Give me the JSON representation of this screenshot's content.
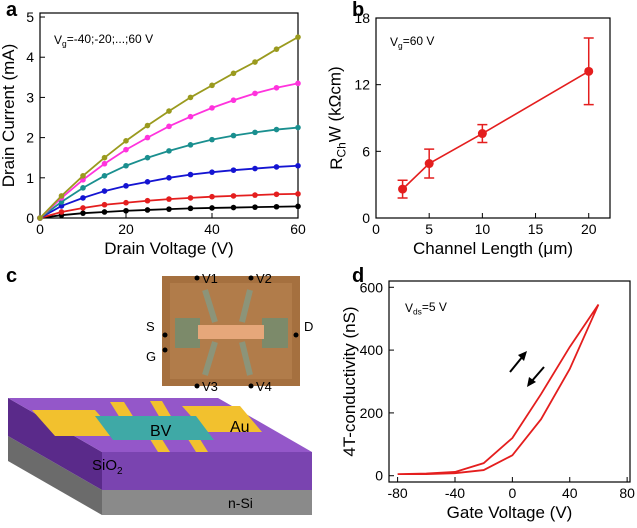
{
  "chart_data": [
    {
      "type": "line",
      "panel": "a",
      "xlabel": "Drain Voltage (V)",
      "ylabel": "Drain Current (mA)",
      "annotation": [
        "V",
        {
          "sub": "g"
        },
        "=-40;-20;...;60 V"
      ],
      "x": [
        0,
        5,
        10,
        15,
        20,
        25,
        30,
        35,
        40,
        45,
        50,
        55,
        60
      ],
      "series": [
        {
          "color": "#000000",
          "values": [
            0,
            0.07,
            0.12,
            0.15,
            0.18,
            0.2,
            0.22,
            0.24,
            0.25,
            0.26,
            0.27,
            0.28,
            0.29
          ]
        },
        {
          "color": "#e41e1e",
          "values": [
            0,
            0.15,
            0.25,
            0.33,
            0.38,
            0.43,
            0.47,
            0.5,
            0.53,
            0.55,
            0.57,
            0.59,
            0.6
          ]
        },
        {
          "color": "#1414d2",
          "values": [
            0,
            0.3,
            0.5,
            0.67,
            0.8,
            0.9,
            1.0,
            1.08,
            1.14,
            1.19,
            1.23,
            1.27,
            1.3
          ]
        },
        {
          "color": "#1a8f8f",
          "values": [
            0,
            0.4,
            0.75,
            1.05,
            1.3,
            1.5,
            1.67,
            1.82,
            1.95,
            2.05,
            2.13,
            2.2,
            2.25
          ]
        },
        {
          "color": "#ff33dd",
          "values": [
            0,
            0.5,
            0.95,
            1.35,
            1.7,
            2.0,
            2.28,
            2.52,
            2.74,
            2.93,
            3.1,
            3.24,
            3.35
          ]
        },
        {
          "color": "#9a9a1e",
          "values": [
            0,
            0.55,
            1.05,
            1.5,
            1.92,
            2.3,
            2.66,
            3.0,
            3.3,
            3.6,
            3.88,
            4.2,
            4.5
          ]
        }
      ],
      "markers": true,
      "xlim": [
        0,
        60
      ],
      "xticks": [
        0,
        20,
        40,
        60
      ],
      "ylim": [
        0,
        5.1
      ],
      "yticks": [
        0,
        1,
        2,
        3,
        4,
        5
      ]
    },
    {
      "type": "scatter",
      "panel": "b",
      "xlabel": "Channel Length (μm)",
      "ylabel": [
        "R",
        {
          "sub": "Ch"
        },
        "W (kΩcm)"
      ],
      "annotation": [
        "V",
        {
          "sub": "g"
        },
        "=60 V"
      ],
      "x": [
        2.5,
        5,
        10,
        20
      ],
      "values": [
        2.6,
        4.9,
        7.6,
        13.2
      ],
      "error": [
        0.8,
        1.3,
        0.8,
        3.0
      ],
      "color": "#e41e1e",
      "line": true,
      "xlim": [
        0,
        22
      ],
      "xticks": [
        0,
        5,
        10,
        15,
        20
      ],
      "ylim": [
        0,
        18
      ],
      "yticks": [
        0,
        6,
        12,
        18
      ]
    },
    {
      "type": "line",
      "panel": "d",
      "xlabel": "Gate Voltage (V)",
      "ylabel": "4T-conductivity (nS)",
      "annotation": [
        "V",
        {
          "sub": "ds"
        },
        "=5 V"
      ],
      "x": [
        -80,
        -60,
        -40,
        -20,
        0,
        20,
        40,
        60,
        40,
        20,
        0,
        -20,
        -40,
        -60,
        -80
      ],
      "series": [
        {
          "color": "#e41e1e",
          "values": [
            5,
            7,
            12,
            40,
            120,
            260,
            410,
            545,
            340,
            180,
            65,
            18,
            8,
            5,
            5
          ]
        }
      ],
      "markers": false,
      "xlim": [
        -86,
        82
      ],
      "xticks": [
        -80,
        -40,
        0,
        40,
        80
      ],
      "ylim": [
        -20,
        620
      ],
      "yticks": [
        0,
        200,
        400,
        600
      ]
    }
  ],
  "diagram": {
    "panel": "c",
    "V1": "V1",
    "V2": "V2",
    "S": "S",
    "D": "D",
    "G": "G",
    "V3": "V3",
    "V4": "V4",
    "BV": "BV",
    "Au": "Au",
    "SiO2": {
      "text": "SiO",
      "sub": "2"
    },
    "nSi": "n-Si"
  }
}
